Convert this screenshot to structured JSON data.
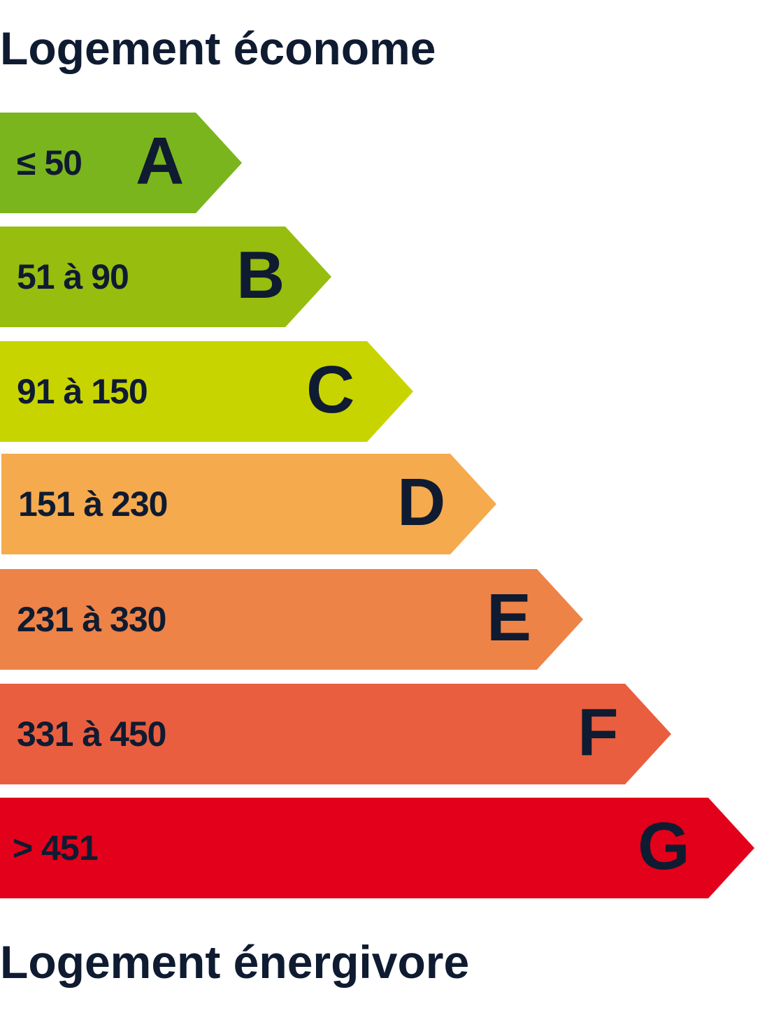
{
  "header": {
    "title": "Logement économe"
  },
  "footer": {
    "title": "Logement énergivore"
  },
  "classes": [
    {
      "letter": "A",
      "range": "≤ 50",
      "color": "#7ab51d"
    },
    {
      "letter": "B",
      "range": "51 à 90",
      "color": "#97bd0f"
    },
    {
      "letter": "C",
      "range": "91 à 150",
      "color": "#c8d400"
    },
    {
      "letter": "D",
      "range": "151 à 230",
      "color": "#f5aa4e"
    },
    {
      "letter": "E",
      "range": "231 à 330",
      "color": "#ee8347"
    },
    {
      "letter": "F",
      "range": "331 à 450",
      "color": "#e95e3f"
    },
    {
      "letter": "G",
      "range": "> 451",
      "color": "#e2001a"
    }
  ],
  "text_color": "#0f1b31"
}
